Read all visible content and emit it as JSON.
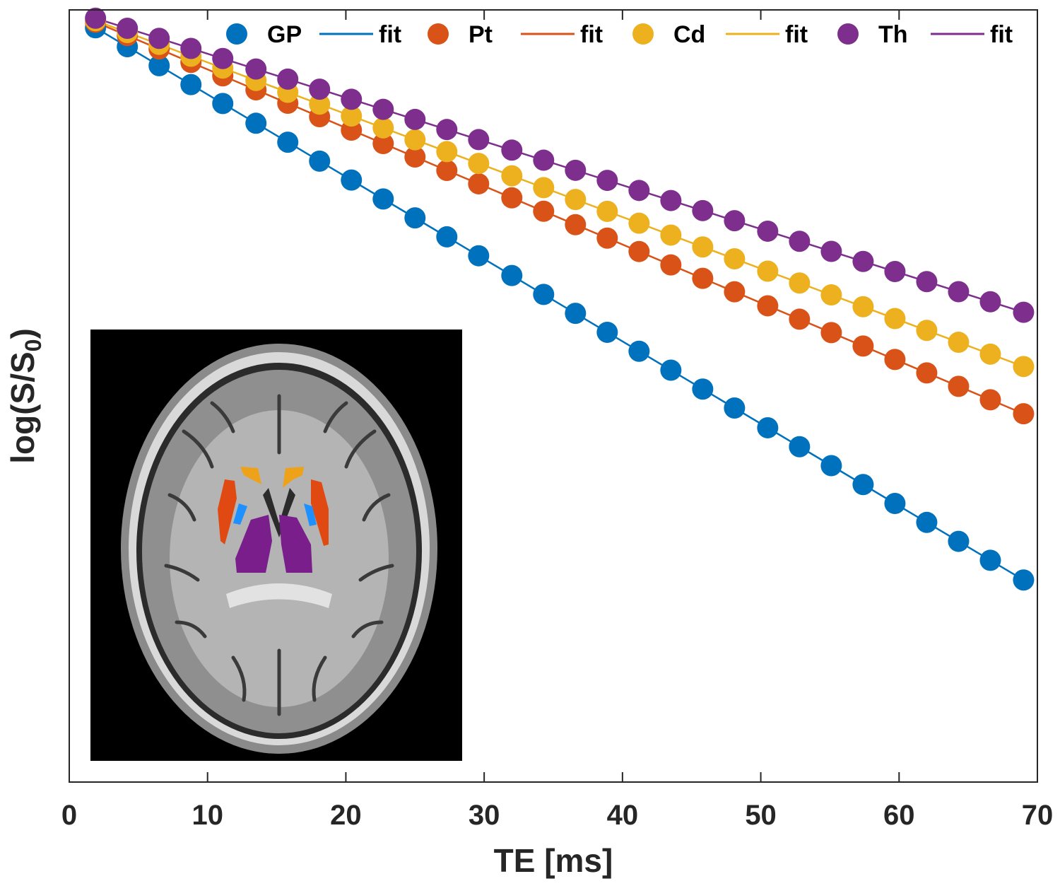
{
  "chart_data": {
    "type": "scatter",
    "title": "",
    "xlabel": "TE [ms]",
    "ylabel_main": "log(S/S",
    "ylabel_sub": "0",
    "ylabel_close": ")",
    "xlim": [
      0,
      70
    ],
    "ylim": [
      -1.2,
      0
    ],
    "xticks": [
      0,
      10,
      20,
      30,
      40,
      50,
      60,
      70
    ],
    "x": [
      1.9,
      4.2,
      6.5,
      8.8,
      11.1,
      13.5,
      15.8,
      18.1,
      20.4,
      22.7,
      25.0,
      27.3,
      29.6,
      32.0,
      34.3,
      36.6,
      38.9,
      41.2,
      43.5,
      45.8,
      48.1,
      50.5,
      52.8,
      55.1,
      57.4,
      59.7,
      62.0,
      64.3,
      66.6,
      69.0
    ],
    "series": [
      {
        "name": "GP",
        "color": "#0072BD",
        "intercept": -0.0035,
        "slope": -0.01279
      },
      {
        "name": "Pt",
        "color": "#D95319",
        "intercept": -0.0018,
        "slope": -0.00907
      },
      {
        "name": "Cd",
        "color": "#EDB120",
        "intercept": -0.0015,
        "slope": -0.00801
      },
      {
        "name": "Th",
        "color": "#7E2F8E",
        "intercept": 0.0,
        "slope": -0.00681
      }
    ],
    "legend": {
      "placement": "top",
      "entries": [
        {
          "label": "GP",
          "kind": "marker",
          "color": "#0072BD"
        },
        {
          "label": "fit",
          "kind": "line",
          "color": "#0072BD"
        },
        {
          "label": "Pt",
          "kind": "marker",
          "color": "#D95319"
        },
        {
          "label": "fit",
          "kind": "line",
          "color": "#D95319"
        },
        {
          "label": "Cd",
          "kind": "marker",
          "color": "#EDB120"
        },
        {
          "label": "fit",
          "kind": "line",
          "color": "#EDB120"
        },
        {
          "label": "Th",
          "kind": "marker",
          "color": "#7E2F8E"
        },
        {
          "label": "fit",
          "kind": "line",
          "color": "#7E2F8E"
        }
      ]
    },
    "inset": {
      "placement": "lower-left",
      "content": "axial-brain-mri-with-colored-basal-ganglia-segmentation"
    }
  }
}
